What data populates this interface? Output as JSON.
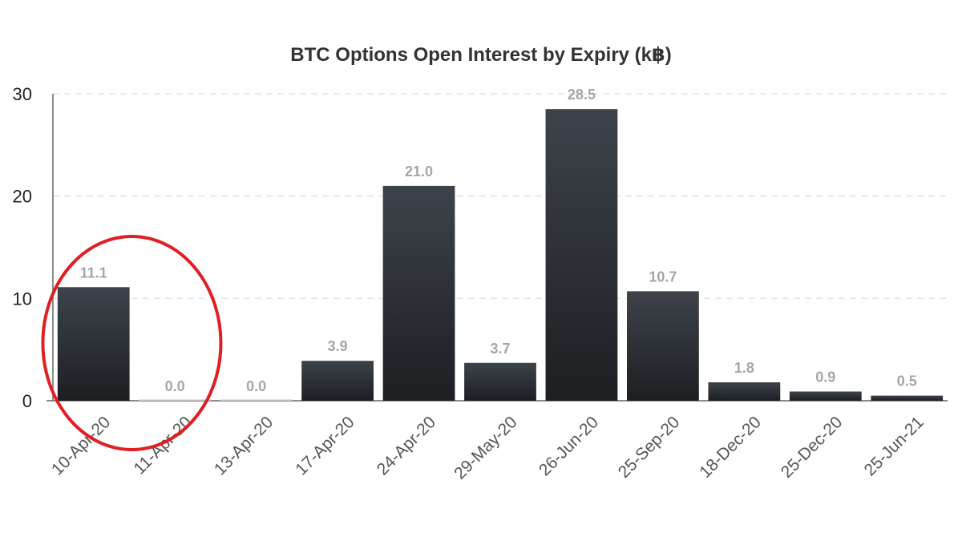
{
  "chart_data": {
    "type": "bar",
    "title": "BTC Options Open Interest by Expiry (k฿)",
    "xlabel": "",
    "ylabel": "",
    "categories": [
      "10-Apr-20",
      "11-Apr-20",
      "13-Apr-20",
      "17-Apr-20",
      "24-Apr-20",
      "29-May-20",
      "26-Jun-20",
      "25-Sep-20",
      "18-Dec-20",
      "25-Dec-20",
      "25-Jun-21"
    ],
    "values": [
      11.1,
      0.0,
      0.0,
      3.9,
      21.0,
      3.7,
      28.5,
      10.7,
      1.8,
      0.9,
      0.5
    ],
    "data_labels": [
      "11.1",
      "0.0",
      "0.0",
      "3.9",
      "21.0",
      "3.7",
      "28.5",
      "10.7",
      "1.8",
      "0.9",
      "0.5"
    ],
    "ylim": [
      0,
      30
    ],
    "yticks": [
      0,
      10,
      20,
      30
    ],
    "ytick_labels": [
      "0",
      "10",
      "20",
      "30"
    ],
    "grid": true,
    "legend": "none",
    "colors": {
      "bar_top": "#3d434a",
      "bar_bottom": "#1c1f22",
      "data_label": "#a6a6a6",
      "gridline": "#e3e3e3",
      "annotation": "#e01e24"
    },
    "annotation": {
      "shape": "ellipse",
      "highlights": [
        "10-Apr-20",
        "11-Apr-20"
      ]
    }
  }
}
